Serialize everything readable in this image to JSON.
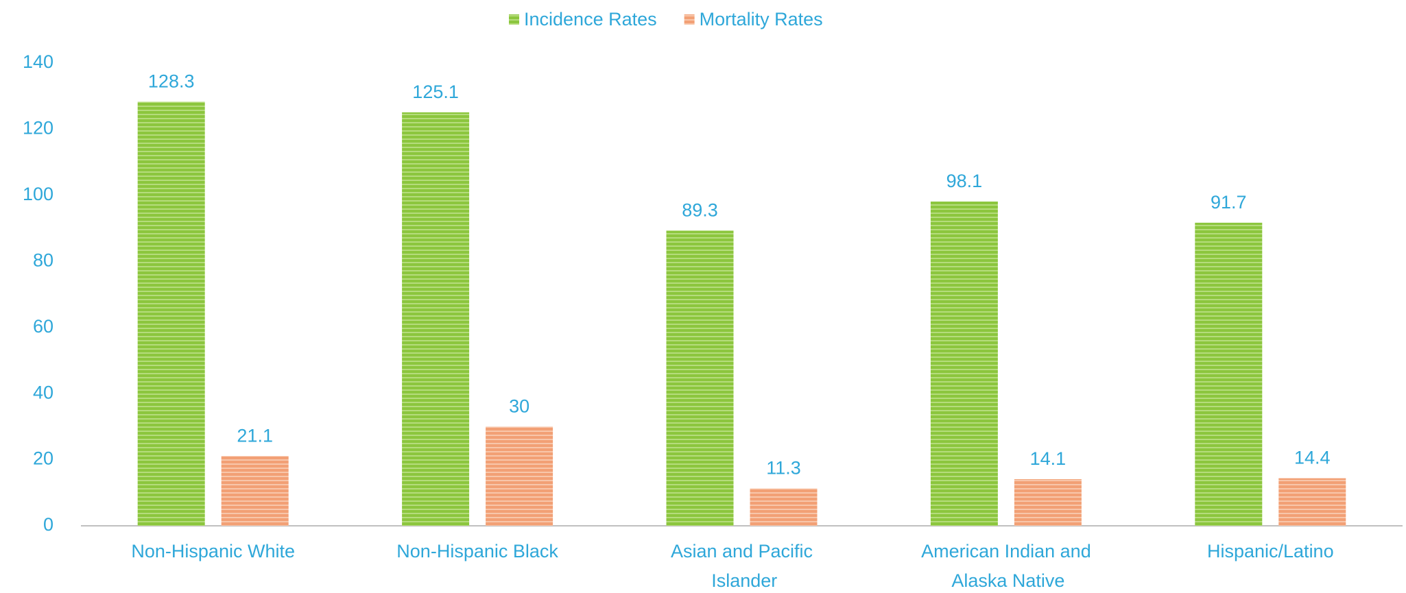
{
  "chart_data": {
    "type": "bar",
    "categories": [
      "Non-Hispanic White",
      "Non-Hispanic Black",
      "Asian and Pacific Islander",
      "American Indian and Alaska Native",
      "Hispanic/Latino"
    ],
    "series": [
      {
        "name": "Incidence Rates",
        "color": "#8cc63e",
        "values": [
          128.3,
          125.1,
          89.3,
          98.1,
          91.7
        ]
      },
      {
        "name": "Mortality Rates",
        "color": "#f2a075",
        "values": [
          21.1,
          30,
          11.3,
          14.1,
          14.4
        ]
      }
    ],
    "ylim": [
      0,
      140
    ],
    "yticks": [
      0,
      20,
      40,
      60,
      80,
      100,
      120,
      140
    ],
    "grid": false,
    "legend": "top"
  }
}
